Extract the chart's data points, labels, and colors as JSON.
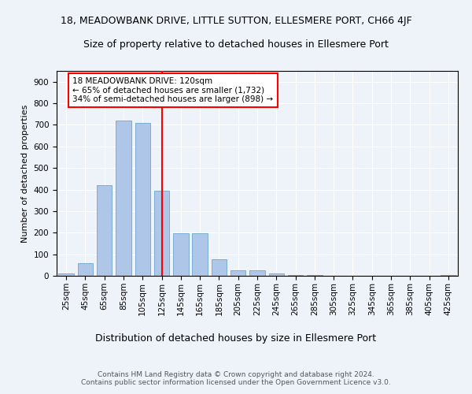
{
  "title": "18, MEADOWBANK DRIVE, LITTLE SUTTON, ELLESMERE PORT, CH66 4JF",
  "subtitle": "Size of property relative to detached houses in Ellesmere Port",
  "xlabel": "Distribution of detached houses by size in Ellesmere Port",
  "ylabel": "Number of detached properties",
  "categories": [
    "25sqm",
    "45sqm",
    "65sqm",
    "85sqm",
    "105sqm",
    "125sqm",
    "145sqm",
    "165sqm",
    "185sqm",
    "205sqm",
    "225sqm",
    "245sqm",
    "265sqm",
    "285sqm",
    "305sqm",
    "325sqm",
    "345sqm",
    "365sqm",
    "385sqm",
    "405sqm",
    "425sqm"
  ],
  "values": [
    10,
    58,
    420,
    720,
    710,
    395,
    197,
    197,
    75,
    25,
    25,
    10,
    5,
    2,
    0,
    0,
    0,
    0,
    0,
    0,
    5
  ],
  "bar_color": "#aec6e8",
  "bar_edge_color": "#7aadd4",
  "vline_pos": 5.0,
  "vline_color": "red",
  "annotation_text": "18 MEADOWBANK DRIVE: 120sqm\n← 65% of detached houses are smaller (1,732)\n34% of semi-detached houses are larger (898) →",
  "annotation_box_color": "white",
  "annotation_box_edge": "red",
  "ylim": [
    0,
    950
  ],
  "yticks": [
    0,
    100,
    200,
    300,
    400,
    500,
    600,
    700,
    800,
    900
  ],
  "bg_color": "#eef3fa",
  "plot_bg_color": "#eef3fa",
  "footer": "Contains HM Land Registry data © Crown copyright and database right 2024.\nContains public sector information licensed under the Open Government Licence v3.0.",
  "title_fontsize": 9,
  "subtitle_fontsize": 9,
  "xlabel_fontsize": 9,
  "ylabel_fontsize": 8,
  "tick_fontsize": 7.5,
  "annotation_fontsize": 7.5,
  "footer_fontsize": 6.5
}
